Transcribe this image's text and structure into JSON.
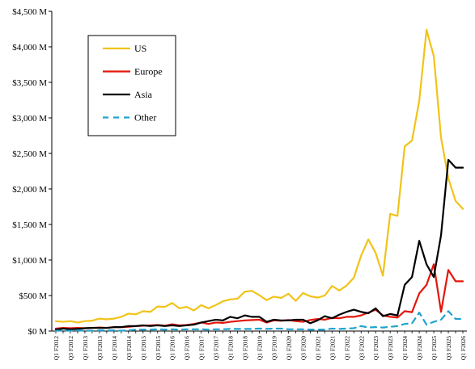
{
  "chart_data": {
    "type": "line",
    "title": "",
    "xlabel": "",
    "ylabel": "",
    "ylim": [
      0,
      4500
    ],
    "y_ticks": [
      0,
      500,
      1000,
      1500,
      2000,
      2500,
      3000,
      3500,
      4000,
      4500
    ],
    "y_tick_labels": [
      "$0 M",
      "$500 M",
      "$1,000 M",
      "$1,500 M",
      "$2,000 M",
      "$2,500 M",
      "$3,000 M",
      "$3,500 M",
      "$4,000 M",
      "$4,500 M"
    ],
    "grid": false,
    "legend_position": "top-left",
    "categories": [
      "Q1 F2012",
      "Q2 F2012",
      "Q3 F2012",
      "Q4 F2012",
      "Q1 F2013",
      "Q2 F2013",
      "Q3 F2013",
      "Q4 F2013",
      "Q1 F2014",
      "Q2 F2014",
      "Q3 F2014",
      "Q4 F2014",
      "Q1 F2015",
      "Q2 F2015",
      "Q3 F2015",
      "Q4 F2015",
      "Q1 F2016",
      "Q2 F2016",
      "Q3 F2016",
      "Q4 F2016",
      "Q1 F2017",
      "Q2 F2017",
      "Q3 F2017",
      "Q4 F2017",
      "Q1 F2018",
      "Q2 F2018",
      "Q3 F2018",
      "Q4 F2018",
      "Q1 F2019",
      "Q2 F2019",
      "Q3 F2019",
      "Q4 F2019",
      "Q1 F2020",
      "Q2 F2020",
      "Q3 F2020",
      "Q4 F2020",
      "Q1 F2021",
      "Q2 F2021",
      "Q3 F2021",
      "Q4 F2021",
      "Q1 F2022",
      "Q2 F2022",
      "Q3 F2022",
      "Q4 F2022",
      "Q1 F2023",
      "Q2 F2023",
      "Q3 F2023",
      "Q4 F2023",
      "Q1 F2024",
      "Q2 F2024",
      "Q3 F2024",
      "Q4 F2024",
      "Q1 F2025",
      "Q2 F2025",
      "Q3 F2025",
      "Q4 F2025",
      "Q1 F2026"
    ],
    "x_tick_labels": [
      "Q1 F2012",
      "Q3 F2012",
      "Q1 F2013",
      "Q3 F2013",
      "Q1 F2014",
      "Q3 F2014",
      "Q1 F2015",
      "Q3 F2015",
      "Q1 F2016",
      "Q3 F2016",
      "Q1 F2017",
      "Q3 F2017",
      "Q1 F2018",
      "Q3 F2018",
      "Q1 F2019",
      "Q3 F2019",
      "Q1 F2020",
      "Q3 F2020",
      "Q1 F2021",
      "Q3 F2021",
      "Q1 F2022",
      "Q3 F2022",
      "Q1 F2023",
      "Q3 F2023",
      "Q1 F2024",
      "Q3 F2024",
      "Q1 F2025",
      "Q3 F2025",
      "Q1 F2026"
    ],
    "series": [
      {
        "name": "US",
        "color": "#f2c318",
        "dash": "solid",
        "values": [
          140,
          130,
          140,
          120,
          140,
          145,
          175,
          165,
          175,
          200,
          245,
          235,
          280,
          270,
          345,
          340,
          395,
          320,
          340,
          290,
          365,
          320,
          365,
          420,
          445,
          455,
          555,
          565,
          505,
          435,
          485,
          465,
          525,
          425,
          535,
          490,
          470,
          500,
          635,
          570,
          640,
          750,
          1060,
          1290,
          1100,
          780,
          1650,
          1620,
          2600,
          2680,
          3240,
          4240,
          3870,
          2720,
          2150,
          1830,
          1720
        ],
        "note_length": "57"
      },
      {
        "name": "Europe",
        "color": "#e3170a",
        "dash": "solid",
        "values": [
          35,
          45,
          40,
          45,
          40,
          45,
          50,
          45,
          55,
          55,
          60,
          70,
          75,
          80,
          85,
          75,
          95,
          80,
          85,
          100,
          120,
          100,
          120,
          115,
          130,
          140,
          150,
          155,
          160,
          120,
          150,
          145,
          155,
          140,
          130,
          155,
          170,
          160,
          185,
          180,
          200,
          200,
          220,
          260,
          300,
          220,
          200,
          190,
          280,
          265,
          530,
          650,
          940,
          270,
          860,
          700,
          700
        ]
      },
      {
        "name": "Asia",
        "color": "#000000",
        "dash": "solid",
        "values": [
          20,
          35,
          25,
          30,
          40,
          45,
          45,
          45,
          55,
          55,
          70,
          70,
          80,
          70,
          80,
          70,
          80,
          70,
          80,
          90,
          120,
          140,
          160,
          150,
          200,
          180,
          220,
          200,
          200,
          130,
          160,
          150,
          150,
          160,
          160,
          110,
          150,
          210,
          180,
          230,
          270,
          300,
          270,
          250,
          320,
          210,
          240,
          220,
          650,
          760,
          1270,
          940,
          760,
          1350,
          2410,
          2300,
          2300
        ]
      },
      {
        "name": "Other",
        "color": "#1fa3cf",
        "dash": "dashed",
        "values": [
          5,
          5,
          5,
          10,
          5,
          5,
          10,
          10,
          10,
          5,
          10,
          20,
          20,
          20,
          25,
          20,
          25,
          20,
          25,
          25,
          25,
          20,
          25,
          25,
          30,
          30,
          30,
          30,
          35,
          30,
          35,
          35,
          25,
          25,
          25,
          20,
          20,
          20,
          35,
          30,
          35,
          40,
          70,
          50,
          55,
          50,
          60,
          70,
          100,
          110,
          260,
          90,
          130,
          160,
          280,
          170,
          170
        ]
      }
    ]
  }
}
